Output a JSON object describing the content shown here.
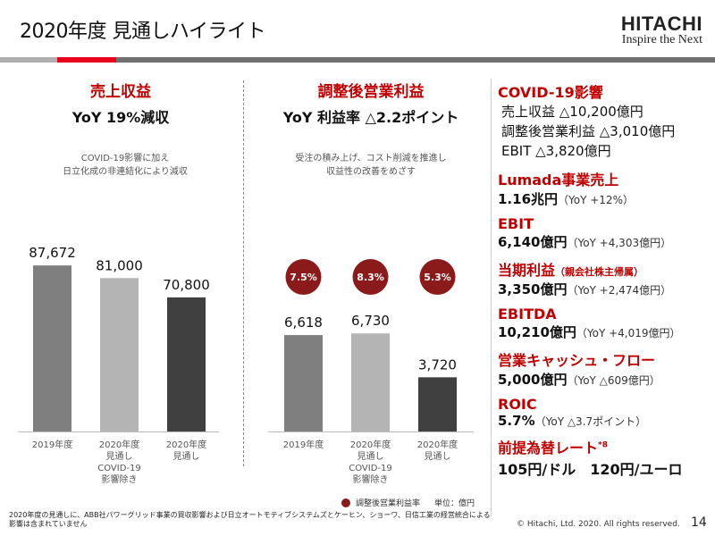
{
  "header": {
    "title": "2020年度 見通しハイライト",
    "logo_brand": "HITACHI",
    "logo_tagline": "Inspire the Next"
  },
  "colors": {
    "accent": "#c00000",
    "stripe_red": "#e8001c",
    "stripe_gray": "#707070",
    "margin_circle": "#8b1a1a"
  },
  "left_section": {
    "title": "売上収益",
    "subtitle": "YoY 19%減収",
    "note_lines": [
      "COVID-19影響に加え",
      "日立化成の非連結化により減収"
    ]
  },
  "mid_section": {
    "title": "調整後営業利益",
    "subtitle": "YoY 利益率 △2.2ポイント",
    "note_lines": [
      "受注の積み上げ、コスト削減を推進し",
      "収益性の改善をめざす"
    ]
  },
  "chart_data": [
    {
      "type": "bar",
      "categories": [
        "2019年度",
        "2020年度\n見通し\nCOVID-19\n影響除き",
        "2020年度\n見通し"
      ],
      "category_lines": [
        [
          "2019年度"
        ],
        [
          "2020年度",
          "見通し",
          "COVID-19",
          "影響除き"
        ],
        [
          "2020年度",
          "見通し"
        ]
      ],
      "values": [
        87672,
        81000,
        70800
      ],
      "data_labels": [
        "87,672",
        "81,000",
        "70,800"
      ],
      "bar_colors": [
        "#7f7f7f",
        "#b4b4b4",
        "#404040"
      ],
      "ylim": [
        0,
        100000
      ],
      "grid": false
    },
    {
      "type": "bar",
      "categories": [
        "2019年度",
        "2020年度\n見通し\nCOVID-19\n影響除き",
        "2020年度\n見通し"
      ],
      "category_lines": [
        [
          "2019年度"
        ],
        [
          "2020年度",
          "見通し",
          "COVID-19",
          "影響除き"
        ],
        [
          "2020年度",
          "見通し"
        ]
      ],
      "values": [
        6618,
        6730,
        3720
      ],
      "data_labels": [
        "6,618",
        "6,730",
        "3,720"
      ],
      "margins": [
        "7.5%",
        "8.3%",
        "5.3%"
      ],
      "bar_colors": [
        "#7f7f7f",
        "#b4b4b4",
        "#404040"
      ],
      "ylim": [
        0,
        13000
      ],
      "grid": false,
      "legend": "調整後営業利益率",
      "unit": "単位：億円"
    }
  ],
  "right_panel": {
    "covid_title": "COVID-19影響",
    "covid_items": [
      "売上収益 △10,200億円",
      "調整後営業利益 △3,010億円",
      "EBIT △3,820億円"
    ],
    "metrics": [
      {
        "label": "Lumada事業売上",
        "label_note": "",
        "value": "1.16兆円",
        "yoy": "（YoY +12%）"
      },
      {
        "label": "EBIT",
        "label_note": "",
        "value": "6,140億円",
        "yoy": "（YoY +4,303億円）"
      },
      {
        "label": "当期利益",
        "label_note": "（親会社株主帰属）",
        "value": "3,350億円",
        "yoy": "（YoY +2,474億円）"
      },
      {
        "label": "EBITDA",
        "label_note": "",
        "value": "10,210億円",
        "yoy": "（YoY +4,019億円）"
      },
      {
        "label": "営業キャッシュ・フロー",
        "label_note": "",
        "value": "5,000億円",
        "yoy": "（YoY △609億円）"
      },
      {
        "label": "ROIC",
        "label_note": "",
        "value": "5.7%",
        "yoy": "（YoY △3.7ポイント）"
      },
      {
        "label": "前提為替レート",
        "label_note": "*8",
        "value": "105円/ドル　120円/ユーロ",
        "yoy": ""
      }
    ]
  },
  "footer": {
    "footnote": "2020年度の見通しに、ABB社パワーグリッド事業の買収影響および日立オートモティブシステムズとケーヒン、ショーワ、日信工業の経営統合による影響は含まれていません",
    "copyright": "© Hitachi, Ltd. 2020. All rights reserved.",
    "page_number": "14"
  }
}
